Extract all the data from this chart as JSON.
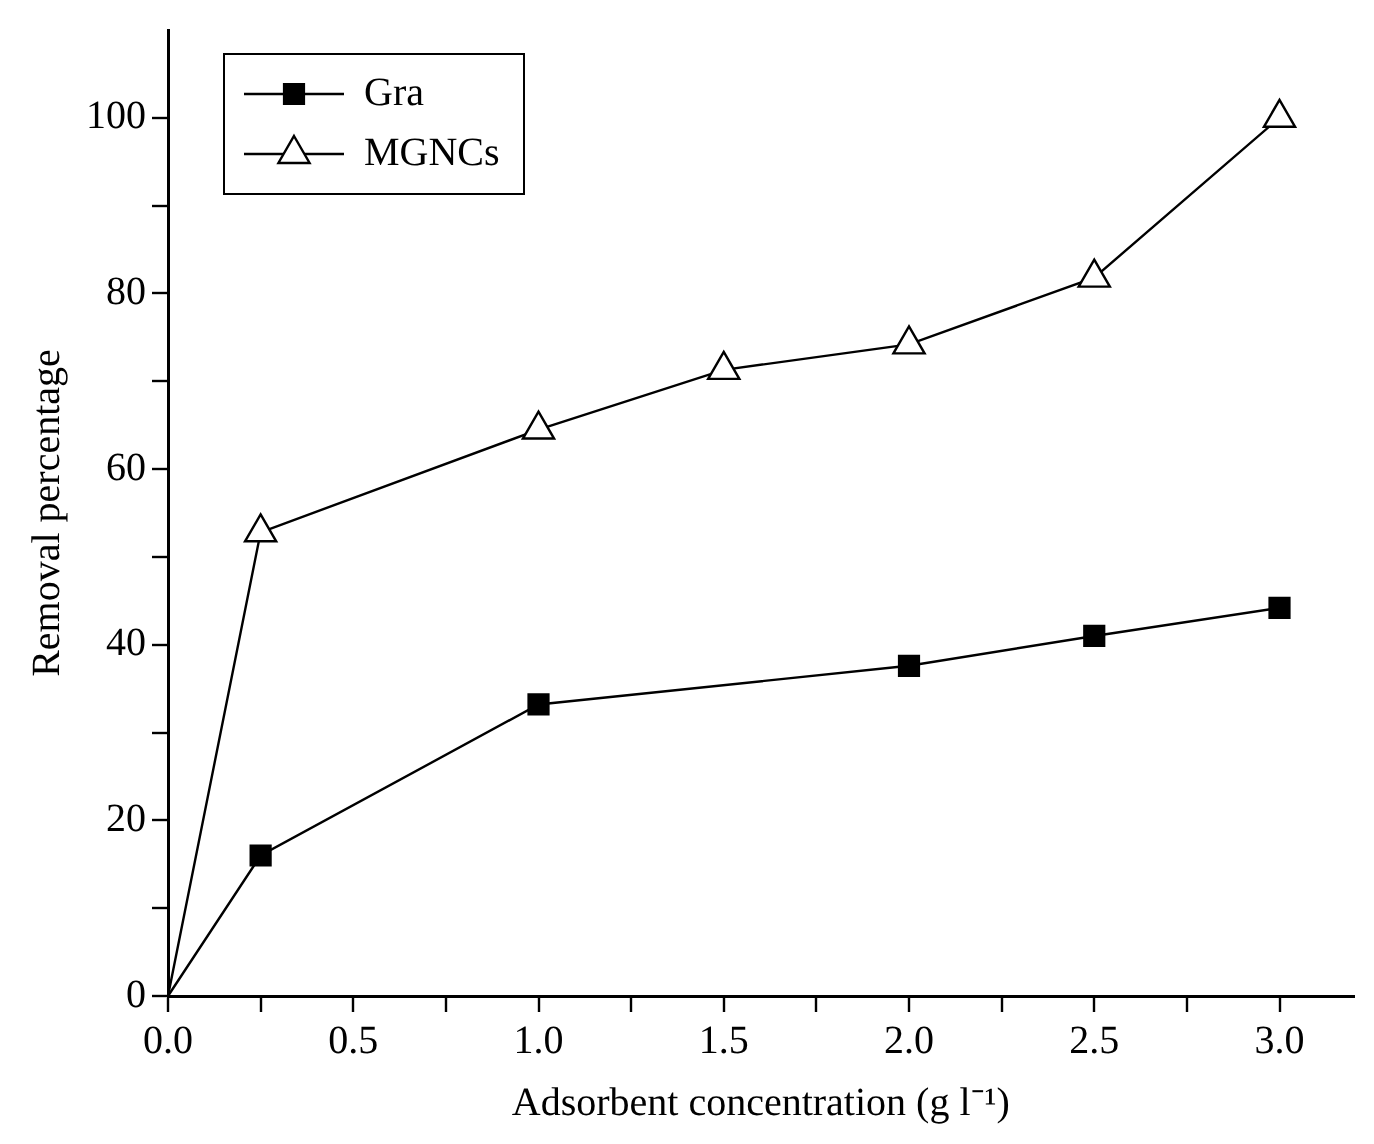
{
  "chart_data": {
    "type": "line",
    "xlabel": "Adsorbent concentration (g l⁻¹)",
    "ylabel": "Removal percentage",
    "x": [
      0,
      0.25,
      1.0,
      2.0,
      2.5,
      3.0
    ],
    "series": [
      {
        "name": "Gra",
        "color": "#000000",
        "marker": "square",
        "values": [
          0,
          16,
          33.2,
          37.6,
          41,
          44.2
        ]
      },
      {
        "name": "MGNCs",
        "color": "#000000",
        "marker": "triangle",
        "x": [
          0,
          0.25,
          1.0,
          1.5,
          2.0,
          2.5,
          3.0
        ],
        "values": [
          0,
          52.8,
          64.5,
          71.3,
          74.2,
          81.8,
          100
        ]
      }
    ],
    "xlim": [
      0,
      3.2
    ],
    "ylim": [
      0,
      110
    ],
    "xticks": [
      {
        "value": 0,
        "label": "0.0"
      },
      {
        "value": 0.25,
        "label": null
      },
      {
        "value": 0.5,
        "label": "0.5"
      },
      {
        "value": 0.75,
        "label": null
      },
      {
        "value": 1,
        "label": "1.0"
      },
      {
        "value": 1.25,
        "label": null
      },
      {
        "value": 1.5,
        "label": "1.5"
      },
      {
        "value": 1.75,
        "label": null
      },
      {
        "value": 2,
        "label": "2.0"
      },
      {
        "value": 2.25,
        "label": null
      },
      {
        "value": 2.5,
        "label": "2.5"
      },
      {
        "value": 2.75,
        "label": null
      },
      {
        "value": 3,
        "label": "3.0"
      }
    ],
    "yticks": [
      0,
      {
        "value": 10,
        "label": null
      },
      20,
      {
        "value": 30,
        "label": null
      },
      40,
      {
        "value": 50,
        "label": null
      },
      60,
      {
        "value": 70,
        "label": null
      },
      80,
      {
        "value": 90,
        "label": null
      },
      100
    ],
    "grid": false,
    "legend": "top left",
    "line_style": "solid"
  }
}
